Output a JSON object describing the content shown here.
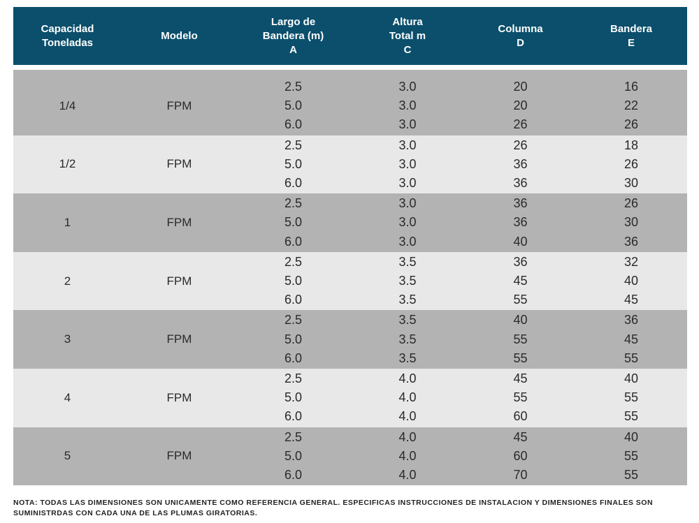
{
  "headers": {
    "capacidad": [
      "Capacidad",
      "Toneladas"
    ],
    "modelo": [
      "Modelo"
    ],
    "largo": [
      "Largo de",
      "Bandera (m)",
      "A"
    ],
    "altura": [
      "Altura",
      "Total m",
      "C"
    ],
    "columna": [
      "Columna",
      "D"
    ],
    "bandera": [
      "Bandera",
      "E"
    ]
  },
  "groups": [
    {
      "capacidad": "1/4",
      "modelo": "FPM",
      "largo": [
        "2.5",
        "5.0",
        "6.0"
      ],
      "altura": [
        "3.0",
        "3.0",
        "3.0"
      ],
      "columna": [
        "20",
        "20",
        "26"
      ],
      "bandera": [
        "16",
        "22",
        "26"
      ]
    },
    {
      "capacidad": "1/2",
      "modelo": "FPM",
      "largo": [
        "2.5",
        "5.0",
        "6.0"
      ],
      "altura": [
        "3.0",
        "3.0",
        "3.0"
      ],
      "columna": [
        "26",
        "36",
        "36"
      ],
      "bandera": [
        "18",
        "26",
        "30"
      ]
    },
    {
      "capacidad": "1",
      "modelo": "FPM",
      "largo": [
        "2.5",
        "5.0",
        "6.0"
      ],
      "altura": [
        "3.0",
        "3.0",
        "3.0"
      ],
      "columna": [
        "36",
        "36",
        "40"
      ],
      "bandera": [
        "26",
        "30",
        "36"
      ]
    },
    {
      "capacidad": "2",
      "modelo": "FPM",
      "largo": [
        "2.5",
        "5.0",
        "6.0"
      ],
      "altura": [
        "3.5",
        "3.5",
        "3.5"
      ],
      "columna": [
        "36",
        "45",
        "55"
      ],
      "bandera": [
        "32",
        "40",
        "45"
      ]
    },
    {
      "capacidad": "3",
      "modelo": "FPM",
      "largo": [
        "2.5",
        "5.0",
        "6.0"
      ],
      "altura": [
        "3.5",
        "3.5",
        "3.5"
      ],
      "columna": [
        "40",
        "55",
        "55"
      ],
      "bandera": [
        "36",
        "45",
        "55"
      ]
    },
    {
      "capacidad": "4",
      "modelo": "FPM",
      "largo": [
        "2.5",
        "5.0",
        "6.0"
      ],
      "altura": [
        "4.0",
        "4.0",
        "4.0"
      ],
      "columna": [
        "45",
        "55",
        "60"
      ],
      "bandera": [
        "40",
        "55",
        "55"
      ]
    },
    {
      "capacidad": "5",
      "modelo": "FPM",
      "largo": [
        "2.5",
        "5.0",
        "6.0"
      ],
      "altura": [
        "4.0",
        "4.0",
        "4.0"
      ],
      "columna": [
        "45",
        "60",
        "70"
      ],
      "bandera": [
        "40",
        "55",
        "55"
      ]
    }
  ],
  "note": "NOTA: TODAS LAS DIMENSIONES SON UNICAMENTE COMO REFERENCIA GENERAL. ESPECIFICAS INSTRUCCIONES DE INSTALACION Y DIMENSIONES FINALES SON SUMINISTRDAS CON CADA UNA DE LAS PLUMAS GIRATORIAS.",
  "colors": {
    "header_bg": "#0b4f6c",
    "band_dark": "#b3b3b3",
    "band_light": "#e8e8e8"
  }
}
